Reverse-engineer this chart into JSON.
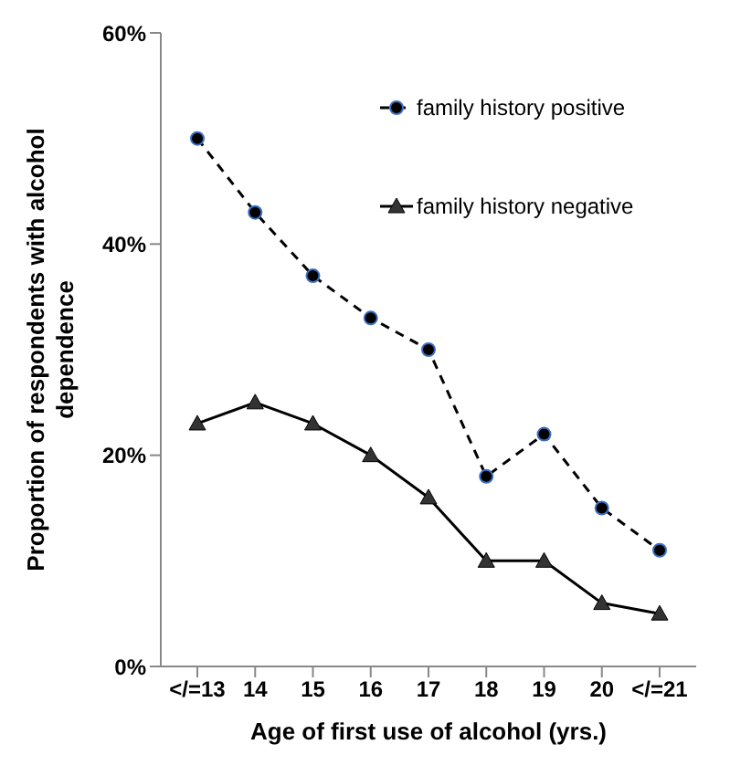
{
  "chart_data": {
    "type": "line",
    "xlabel": "Age of first use of alcohol (yrs.)",
    "ylabel": "Proportion of respondents with alcohol dependence",
    "categories": [
      "</=13",
      "14",
      "15",
      "16",
      "17",
      "18",
      "19",
      "20",
      "</=21"
    ],
    "series": [
      {
        "name": "family history positive",
        "color": "#000000",
        "marker": "circle",
        "line_style": "dashed",
        "values": [
          50,
          43,
          37,
          33,
          30,
          18,
          22,
          15,
          11
        ]
      },
      {
        "name": "family history negative",
        "color": "#000000",
        "marker": "triangle",
        "line_style": "solid",
        "values": [
          23,
          25,
          23,
          20,
          16,
          10,
          10,
          6,
          5
        ]
      }
    ],
    "ylim": [
      0,
      60
    ],
    "yticks": [
      {
        "value": 0,
        "label": "0%"
      },
      {
        "value": 20,
        "label": "20%"
      },
      {
        "value": 40,
        "label": "40%"
      },
      {
        "value": 60,
        "label": "60%"
      }
    ],
    "grid": false,
    "legend": "top right"
  }
}
